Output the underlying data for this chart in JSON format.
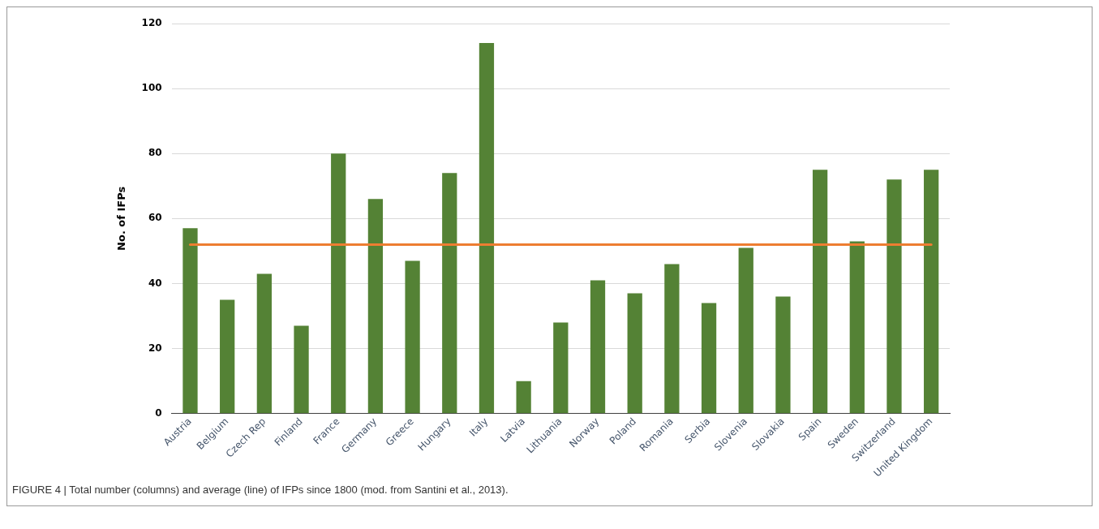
{
  "chart_data": {
    "type": "bar",
    "ylabel": "No. of IFPs",
    "categories": [
      "Austria",
      "Belgium",
      "Czech Rep",
      "Finland",
      "France",
      "Germany",
      "Greece",
      "Hungary",
      "Italy",
      "Latvia",
      "Lithuania",
      "Norway",
      "Poland",
      "Romania",
      "Serbia",
      "Slovenia",
      "Slovakia",
      "Spain",
      "Sweden",
      "Switzerland",
      "United Kingdom"
    ],
    "values": [
      57,
      35,
      43,
      27,
      80,
      66,
      47,
      74,
      114,
      10,
      28,
      41,
      37,
      46,
      34,
      51,
      36,
      75,
      53,
      72,
      75
    ],
    "color": "#548235",
    "ylim": [
      0,
      120
    ],
    "yticks": [
      0,
      20,
      40,
      60,
      80,
      100,
      120
    ],
    "grid": "y",
    "ref_lines": [
      {
        "axis": "y",
        "value": 52,
        "label": null,
        "color": "#ed7d31"
      }
    ],
    "annotations": [
      "FIGURE 4 | Total number (columns) and average (line) of IFPs since 1800 (mod. from Santini et al., 2013)."
    ]
  }
}
